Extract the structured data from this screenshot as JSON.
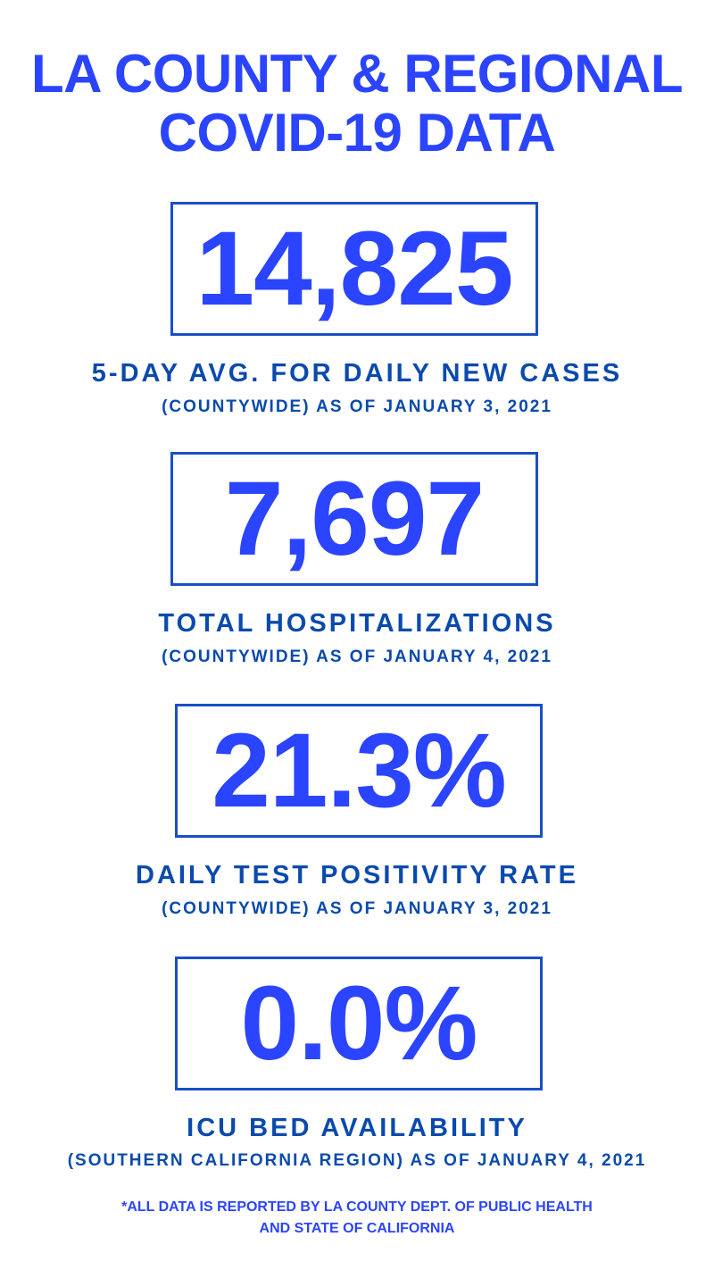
{
  "title": {
    "line1": "LA COUNTY & REGIONAL",
    "line2": "COVID-19 DATA"
  },
  "stats": [
    {
      "value": "14,825",
      "label": "5-DAY AVG. FOR DAILY NEW CASES",
      "sub": "(COUNTYWIDE) AS OF JANUARY 3, 2021"
    },
    {
      "value": "7,697",
      "label": "TOTAL HOSPITALIZATIONS",
      "sub": "(COUNTYWIDE) AS OF JANUARY 4, 2021"
    },
    {
      "value": "21.3%",
      "label": "DAILY TEST POSITIVITY RATE",
      "sub": "(COUNTYWIDE) AS OF JANUARY 3, 2021"
    },
    {
      "value": "0.0%",
      "label": "ICU BED AVAILABILITY",
      "sub": "(SOUTHERN CALIFORNIA REGION) AS OF JANUARY 4, 2021"
    }
  ],
  "footnote": {
    "line1": "*ALL DATA IS REPORTED BY LA COUNTY DEPT. OF PUBLIC HEALTH",
    "line2": "AND STATE OF CALIFORNIA"
  },
  "colors": {
    "accent": "#2b44ff",
    "label": "#0a4aad",
    "border": "#1a4fc4"
  }
}
